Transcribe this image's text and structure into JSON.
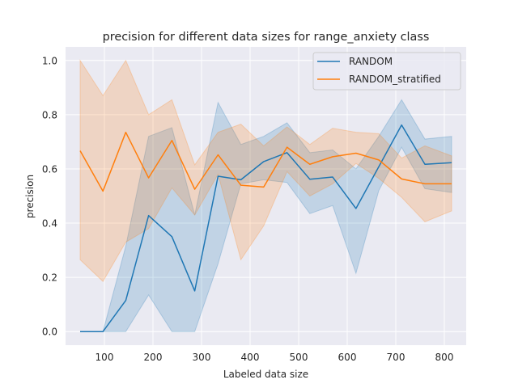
{
  "chart_data": {
    "type": "line",
    "title": "precision for different data sizes for range_anxiety class",
    "xlabel": "Labeled data size",
    "ylabel": "precision",
    "xlim": [
      20,
      845
    ],
    "ylim": [
      -0.05,
      1.05
    ],
    "xticks": [
      100,
      200,
      300,
      400,
      500,
      600,
      700,
      800
    ],
    "yticks": [
      0.0,
      0.2,
      0.4,
      0.6,
      0.8,
      1.0
    ],
    "xtick_labels": [
      "100",
      "200",
      "300",
      "400",
      "500",
      "600",
      "700",
      "800"
    ],
    "ytick_labels": [
      "0.0",
      "0.2",
      "0.4",
      "0.6",
      "0.8",
      "1.0"
    ],
    "grid": true,
    "legend_position": "top-right",
    "x": [
      50,
      97,
      144,
      191,
      239,
      286,
      334,
      381,
      428,
      476,
      523,
      570,
      618,
      665,
      712,
      760,
      815
    ],
    "series": [
      {
        "name": "RANDOM",
        "color": "#1f77b4",
        "values": [
          0.0,
          0.0,
          0.115,
          0.428,
          0.35,
          0.15,
          0.573,
          0.56,
          0.627,
          0.66,
          0.562,
          0.57,
          0.454,
          0.608,
          0.762,
          0.617,
          0.623
        ],
        "lower": [
          0.0,
          0.0,
          0.0,
          0.135,
          0.0,
          0.0,
          0.25,
          0.545,
          0.56,
          0.55,
          0.435,
          0.465,
          0.215,
          0.52,
          0.68,
          0.527,
          0.513
        ],
        "upper": [
          0.0,
          0.0,
          0.315,
          0.72,
          0.752,
          0.43,
          0.845,
          0.69,
          0.72,
          0.77,
          0.66,
          0.67,
          0.6,
          0.72,
          0.855,
          0.71,
          0.72
        ]
      },
      {
        "name": "RANDOM_stratified",
        "color": "#ff7f0e",
        "values": [
          0.667,
          0.518,
          0.735,
          0.567,
          0.705,
          0.525,
          0.652,
          0.54,
          0.533,
          0.68,
          0.617,
          0.645,
          0.658,
          0.633,
          0.563,
          0.545,
          0.545
        ],
        "lower": [
          0.265,
          0.185,
          0.33,
          0.38,
          0.53,
          0.43,
          0.58,
          0.265,
          0.39,
          0.59,
          0.5,
          0.545,
          0.62,
          0.565,
          0.495,
          0.405,
          0.445
        ],
        "upper": [
          1.0,
          0.87,
          1.0,
          0.8,
          0.855,
          0.615,
          0.735,
          0.765,
          0.685,
          0.755,
          0.69,
          0.75,
          0.735,
          0.73,
          0.64,
          0.685,
          0.648
        ]
      }
    ]
  }
}
